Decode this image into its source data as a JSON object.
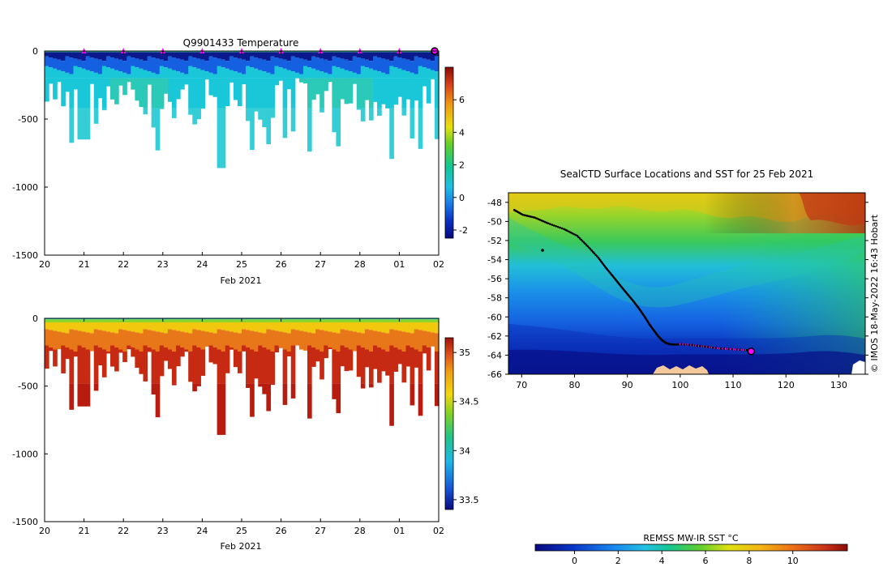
{
  "chart_data": [
    {
      "type": "heatmap",
      "name": "temperature-section",
      "title": "Q9901433  Temperature",
      "xlabel": "Feb 2021",
      "ylabel": "",
      "x_ticks": [
        "20",
        "21",
        "22",
        "23",
        "24",
        "25",
        "26",
        "27",
        "28",
        "01",
        "02"
      ],
      "x_range_days": [
        0,
        10
      ],
      "y_ticks": [
        0,
        -500,
        -1000,
        -1500
      ],
      "ylim": [
        -1500,
        0
      ],
      "colorbar_ticks": [
        6,
        4,
        2,
        0,
        -2
      ],
      "colorbar_range": [
        -2.5,
        8
      ],
      "colors": {
        "surface": "#2fbf8a",
        "cold": "#0a1a8c",
        "mid": "#1560e0",
        "upper": "#19c7d8",
        "deep": "#2bc9b8",
        "bottom": "#35cdd6"
      },
      "surface_markers_days": [
        1,
        2,
        3,
        4,
        5,
        6,
        7,
        8,
        9
      ],
      "current_marker_day": 10,
      "marker_color": "#ff00ff"
    },
    {
      "type": "heatmap",
      "name": "salinity-section",
      "title": "",
      "xlabel": "Feb 2021",
      "x_ticks": [
        "20",
        "21",
        "22",
        "23",
        "24",
        "25",
        "26",
        "27",
        "28",
        "01",
        "02"
      ],
      "x_range_days": [
        0,
        10
      ],
      "y_ticks": [
        0,
        -500,
        -1000,
        -1500
      ],
      "ylim": [
        -1500,
        0
      ],
      "colorbar_ticks": [
        "35",
        "34.5",
        "34",
        "33.5"
      ],
      "colorbar_values": [
        35,
        34.5,
        34,
        33.5
      ],
      "colorbar_range": [
        33.4,
        35.15
      ],
      "colors": {
        "surface": "#19c7d8",
        "fresh": "#8ad62a",
        "yellow": "#f2c80f",
        "orange": "#e8771a",
        "deep": "#c62a12",
        "bottom": "#b71c0e"
      }
    },
    {
      "type": "heatmap",
      "name": "sst-map",
      "title": "SealCTD Surface Locations and SST for 25 Feb 2021",
      "x_ticks": [
        70,
        80,
        90,
        100,
        110,
        120,
        130
      ],
      "xlim": [
        67.5,
        135
      ],
      "y_ticks": [
        -48,
        -50,
        -52,
        -54,
        -56,
        -58,
        -60,
        -62,
        -64,
        -66
      ],
      "ylim": [
        -66,
        -47
      ],
      "credit": "© IMOS 18-May-2022 16:43 Hobart",
      "track_lon": [
        68.6,
        70.2,
        72.5,
        75,
        78,
        80.5,
        82.5,
        84.5,
        86,
        87.5,
        88.8,
        90,
        91.2,
        92.3,
        93.3,
        94.2,
        95,
        95.8,
        96.5,
        97.2,
        98,
        99,
        100,
        101.5,
        103,
        104.5,
        106,
        107.5,
        109,
        110.5,
        112,
        113.2
      ],
      "track_lat": [
        -48.8,
        -49.3,
        -49.6,
        -50.2,
        -50.8,
        -51.5,
        -52.6,
        -53.8,
        -54.9,
        -55.9,
        -56.8,
        -57.6,
        -58.4,
        -59.2,
        -60.0,
        -60.8,
        -61.4,
        -62.0,
        -62.4,
        -62.7,
        -62.85,
        -62.9,
        -62.85,
        -62.9,
        -63.0,
        -63.1,
        -63.2,
        -63.3,
        -63.35,
        -63.4,
        -63.45,
        -63.5
      ],
      "recent_track_from_index": 22,
      "current_lon": 113.4,
      "current_lat": -63.6,
      "colors": {
        "track": "#000000",
        "recent_track": "#ff00ff",
        "land": "#f3c99c"
      }
    },
    {
      "type": "colorbar",
      "name": "sst-colorbar",
      "label": "REMSS MW-IR SST °C",
      "ticks": [
        0,
        2,
        4,
        6,
        8,
        10
      ],
      "range": [
        -1.8,
        12.5
      ]
    }
  ]
}
